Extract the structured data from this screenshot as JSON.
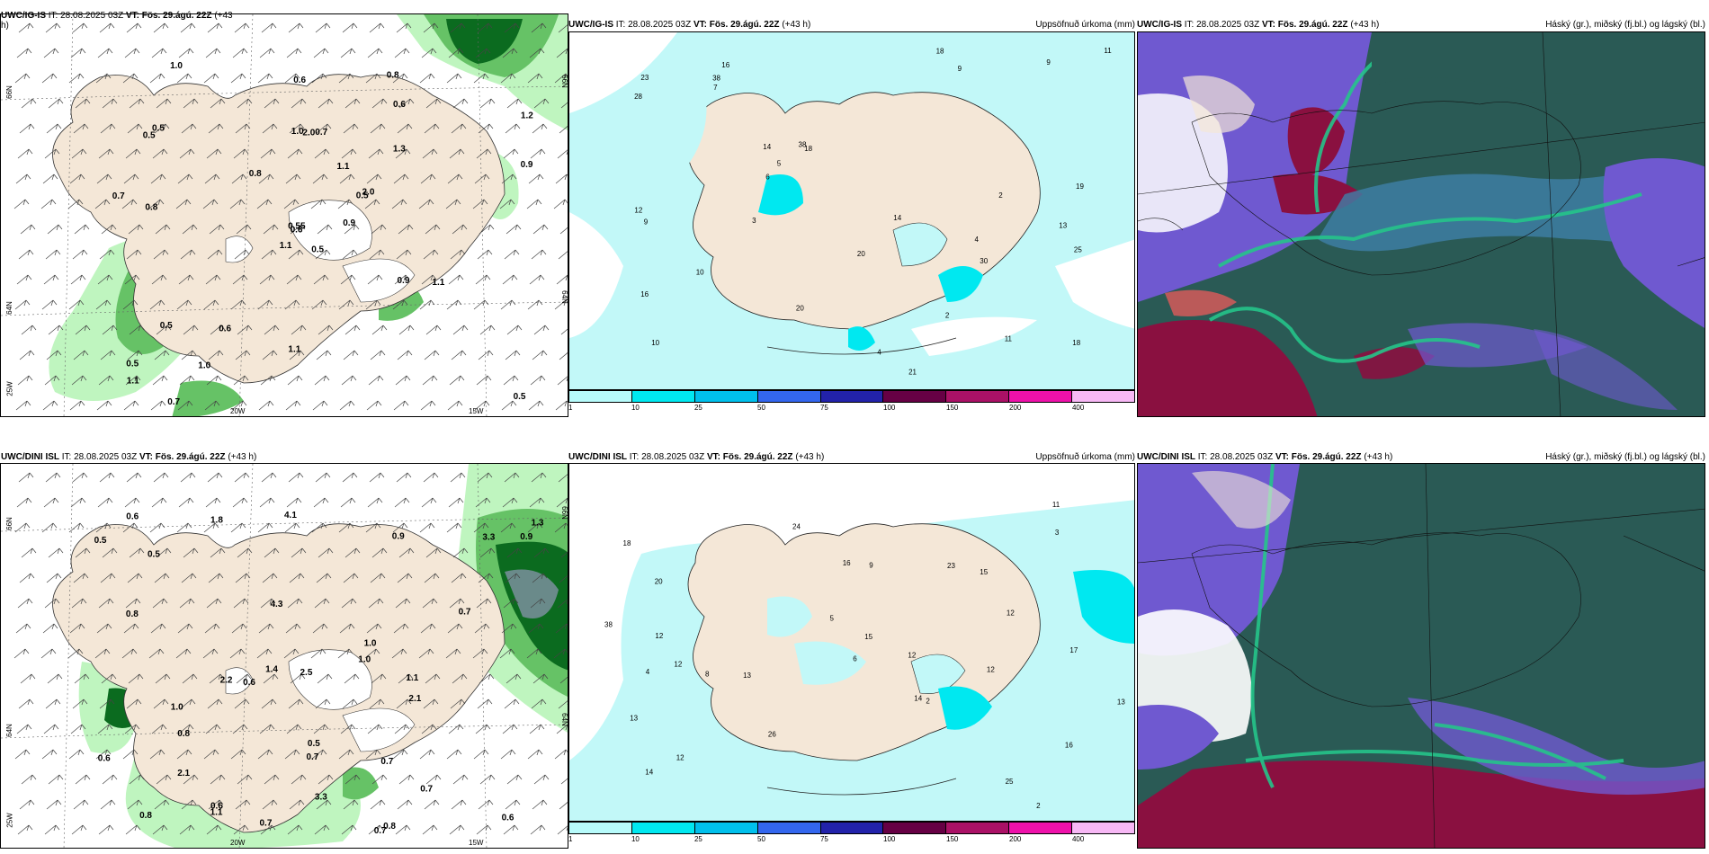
{
  "panels": [
    {
      "id": "tl",
      "model": "UWC/IG-IS",
      "it": " IT: 28.08.2025 03Z ",
      "vt_label": "VT: Fös. 29.ágú. 22Z",
      "lead": " (+43",
      "lead2": "h)",
      "right_title": "",
      "axis": {
        "lat66": "66N",
        "lat64": "64N",
        "lon25": "25W",
        "lon20": "20W",
        "lon15": "15W",
        "lat66r": "66N",
        "lat64r": "64N"
      },
      "values": [
        "0.5",
        "0.5",
        "0.6",
        "0.5",
        "0.5",
        "0.6",
        "0.8",
        "0.7",
        "0.6",
        "0.9",
        "1.0",
        "0.5",
        "0.8",
        "1.2",
        "1.1",
        "1.3",
        "0.7",
        "1.0",
        "1.1",
        "0.5",
        "0.8",
        "1.1",
        "1.0",
        "2.0",
        "2.0",
        "1.1",
        "0.5",
        "0.6",
        "0.7",
        "0.9",
        "0.9",
        "0.55",
        "1.1"
      ]
    },
    {
      "id": "tm",
      "model": "UWC/IG-IS",
      "it": " IT: 28.08.2025 03Z ",
      "vt_label": "VT: Fös. 29.ágú. 22Z",
      "lead": " (+43 h)",
      "right_title": "Uppsöfnuð úrkoma (mm)",
      "values": [
        "4",
        "13",
        "10",
        "16",
        "18",
        "11",
        "16",
        "9",
        "14",
        "21",
        "28",
        "12",
        "23",
        "18",
        "20",
        "19",
        "20",
        "14",
        "38",
        "10",
        "11",
        "9",
        "6",
        "25",
        "18",
        "38",
        "30",
        "9",
        "7",
        "2",
        "4",
        "2",
        "5",
        "3"
      ]
    },
    {
      "id": "tr",
      "model": "UWC/IG-IS",
      "it": " IT: 28.08.2025 03Z ",
      "vt_label": "VT: Fös. 29.ágú. 22Z",
      "lead": " (+43 h)",
      "right_title": "Háský (gr.), miðský (fj.bl.) og lágský (bl.)"
    },
    {
      "id": "bl",
      "model": "UWC/DINI ISL",
      "it": " IT: 28.08.2025 03Z ",
      "vt_label": "VT: Fös. 29.ágú. 22Z",
      "lead": " (+43 h)",
      "right_title": "",
      "axis": {
        "lat66": "66N",
        "lat64": "64N",
        "lon25": "25W",
        "lon20": "20W",
        "lon15": "15W",
        "lat66r": "66N",
        "lat64r": "64N"
      },
      "values": [
        "0.7",
        "0.7",
        "0.6",
        "0.7",
        "1.8",
        "0.5",
        "2.2",
        "0.6",
        "4.1",
        "4.3",
        "3.3",
        "3.3",
        "1.4",
        "0.7",
        "0.9",
        "1.0",
        "0.8",
        "1.1",
        "0.6",
        "0.5",
        "0.7",
        "1.3",
        "1.0",
        "0.8",
        "0.7",
        "1.0",
        "0.6",
        "0.8",
        "0.6",
        "2.1",
        "2.5",
        "0.8",
        "0.5",
        "0.9",
        "2.1",
        "1.1"
      ]
    },
    {
      "id": "bm",
      "model": "UWC/DINI ISL",
      "it": " IT: 28.08.2025 03Z ",
      "vt_label": "VT: Fös. 29.ágú. 22Z",
      "lead": " (+43 h)",
      "right_title": "Uppsöfnuð úrkoma (mm)",
      "values": [
        "2",
        "12",
        "14",
        "18",
        "16",
        "20",
        "12",
        "13",
        "15",
        "16",
        "23",
        "25",
        "26",
        "24",
        "12",
        "13",
        "12",
        "15",
        "38",
        "14",
        "11",
        "9",
        "12",
        "13",
        "17",
        "12",
        "8",
        "6",
        "5",
        "3",
        "2",
        "4"
      ]
    },
    {
      "id": "br",
      "model": "UWC/DINI ISL",
      "it": " IT: 28.08.2025 03Z ",
      "vt_label": "VT: Fös. 29.ágú. 22Z",
      "lead": " (+43 h)",
      "right_title": "Háský (gr.), miðský (fj.bl.) og lágský (bl.)"
    }
  ],
  "legend": {
    "ticks": [
      "1",
      "10",
      "25",
      "50",
      "75",
      "100",
      "150",
      "200",
      "400"
    ],
    "colors": [
      "#b7fbfb",
      "#00e8f0",
      "#00c0ec",
      "#3366ee",
      "#2222aa",
      "#660044",
      "#aa1166",
      "#ee11aa",
      "#f7b8f5"
    ]
  },
  "colors": {
    "land": "#f4e7d7",
    "light_green": "#bff5bf",
    "mid_green": "#66c266",
    "dark_green": "#0b6b1f",
    "precip_light": "#c2f8f8",
    "cloud_high": "#25c48a",
    "cloud_mid": "#3f7fa8",
    "cloud_low": "#6f59d0",
    "cloud_dark": "#2a5a55",
    "cloud_red": "#8a1040"
  }
}
